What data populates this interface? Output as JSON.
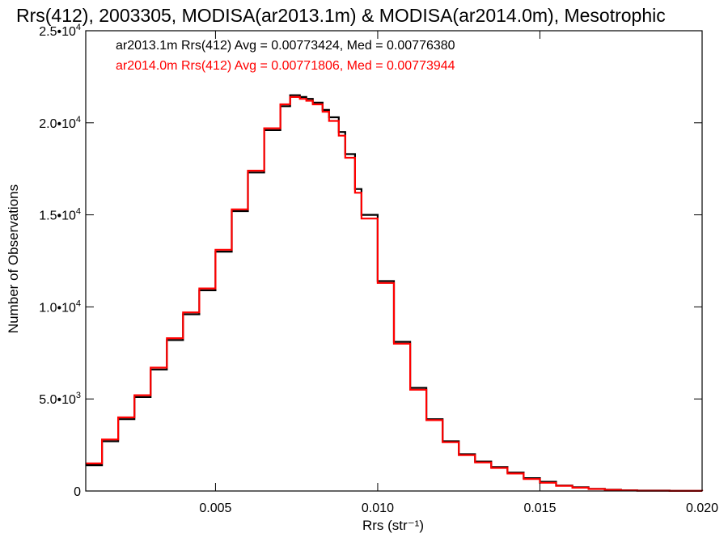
{
  "chart_data": {
    "type": "line",
    "title": "Rrs(412), 2003305, MODISA(ar2013.1m) & MODISA(ar2014.0m), Mesotrophic",
    "xlabel": "Rrs (str⁻¹)",
    "ylabel": "Number of Observations",
    "xlim": [
      0.001,
      0.02
    ],
    "ylim": [
      0,
      25000
    ],
    "x_ticks": [
      0.005,
      0.01,
      0.015,
      0.02
    ],
    "x_tick_labels": [
      "0.005",
      "0.010",
      "0.015",
      "0.020"
    ],
    "y_ticks": [
      0,
      5000,
      10000,
      15000,
      20000,
      25000
    ],
    "y_tick_labels": [
      {
        "mant": "0",
        "exp": ""
      },
      {
        "mant": "5.0•10",
        "exp": "3"
      },
      {
        "mant": "1.0•10",
        "exp": "4"
      },
      {
        "mant": "1.5•10",
        "exp": "4"
      },
      {
        "mant": "2.0•10",
        "exp": "4"
      },
      {
        "mant": "2.5•10",
        "exp": "4"
      }
    ],
    "grid": false,
    "legend_position": "top-left",
    "series": [
      {
        "name": "ar2013.1m Rrs(412) Avg = 0.00773424, Med = 0.00776380",
        "color": "#000000",
        "x": [
          0.001,
          0.0015,
          0.002,
          0.0025,
          0.003,
          0.0035,
          0.004,
          0.0045,
          0.005,
          0.0055,
          0.006,
          0.0065,
          0.007,
          0.0073,
          0.0076,
          0.0078,
          0.008,
          0.0083,
          0.0085,
          0.0088,
          0.009,
          0.0093,
          0.0095,
          0.01,
          0.0105,
          0.011,
          0.0115,
          0.012,
          0.0125,
          0.013,
          0.0135,
          0.014,
          0.0145,
          0.015,
          0.0155,
          0.016,
          0.0165,
          0.017,
          0.0175,
          0.018,
          0.019,
          0.02
        ],
        "y": [
          1400,
          2700,
          3900,
          5100,
          6600,
          8200,
          9600,
          10900,
          13000,
          15200,
          17300,
          19600,
          20900,
          21500,
          21400,
          21300,
          21100,
          20700,
          20300,
          19500,
          18300,
          16400,
          15000,
          11400,
          8100,
          5600,
          3900,
          2700,
          2000,
          1600,
          1300,
          1000,
          700,
          500,
          300,
          200,
          120,
          70,
          40,
          20,
          5,
          0
        ]
      },
      {
        "name": "ar2014.0m Rrs(412) Avg = 0.00771806, Med = 0.00773944",
        "color": "#ff0000",
        "x": [
          0.001,
          0.0015,
          0.002,
          0.0025,
          0.003,
          0.0035,
          0.004,
          0.0045,
          0.005,
          0.0055,
          0.006,
          0.0065,
          0.007,
          0.0073,
          0.0076,
          0.0078,
          0.008,
          0.0083,
          0.0085,
          0.0088,
          0.009,
          0.0093,
          0.0095,
          0.01,
          0.0105,
          0.011,
          0.0115,
          0.012,
          0.0125,
          0.013,
          0.0135,
          0.014,
          0.0145,
          0.015,
          0.0155,
          0.016,
          0.0165,
          0.017,
          0.0175,
          0.018,
          0.019,
          0.02
        ],
        "y": [
          1500,
          2800,
          4000,
          5200,
          6700,
          8300,
          9700,
          11000,
          13100,
          15300,
          17400,
          19700,
          21000,
          21400,
          21300,
          21200,
          21000,
          20600,
          20100,
          19300,
          18100,
          16200,
          14800,
          11300,
          8000,
          5500,
          3850,
          2650,
          1950,
          1550,
          1250,
          950,
          650,
          450,
          280,
          180,
          110,
          60,
          30,
          15,
          4,
          0
        ]
      }
    ]
  }
}
